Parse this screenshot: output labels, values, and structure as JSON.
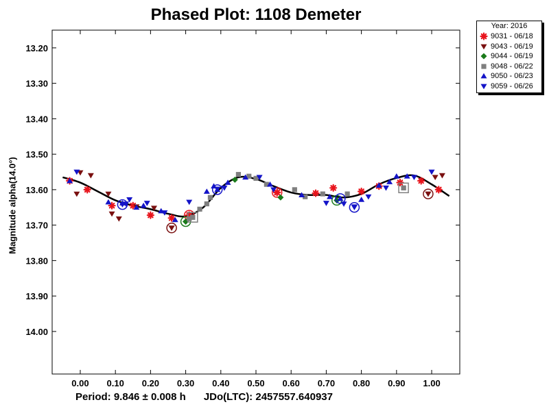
{
  "chart_data": {
    "type": "scatter",
    "title": "Phased Plot: 1108 Demeter",
    "ylabel": "Magnitude alpha(14.0°)",
    "xlim": [
      -0.08,
      1.08
    ],
    "ylim": [
      14.12,
      13.15
    ],
    "y_inverted": true,
    "x_ticks": [
      "0.00",
      "0.10",
      "0.20",
      "0.30",
      "0.40",
      "0.50",
      "0.60",
      "0.70",
      "0.80",
      "0.90",
      "1.00"
    ],
    "x_tick_values": [
      0,
      0.1,
      0.2,
      0.3,
      0.4,
      0.5,
      0.6,
      0.7,
      0.8,
      0.9,
      1.0
    ],
    "y_ticks": [
      "13.20",
      "13.30",
      "13.40",
      "13.50",
      "13.60",
      "13.70",
      "13.80",
      "13.90",
      "14.00"
    ],
    "y_tick_values": [
      13.2,
      13.3,
      13.4,
      13.5,
      13.6,
      13.7,
      13.8,
      13.9,
      14.0
    ],
    "legend_title": "Year: 2016",
    "legend_position": "outside-top-right",
    "series": [
      {
        "name": "9031 - 06/18",
        "marker": "star",
        "color": "#e8141c",
        "points": [
          [
            -0.03,
            13.575
          ],
          [
            0.02,
            13.6
          ],
          [
            0.09,
            13.645
          ],
          [
            0.15,
            13.645
          ],
          [
            0.2,
            13.672
          ],
          [
            0.26,
            13.68
          ],
          [
            0.31,
            13.672
          ],
          [
            0.56,
            13.608
          ],
          [
            0.67,
            13.61
          ],
          [
            0.72,
            13.595
          ],
          [
            0.8,
            13.605
          ],
          [
            0.85,
            13.59
          ],
          [
            0.91,
            13.58
          ],
          [
            0.97,
            13.575
          ],
          [
            1.02,
            13.6
          ]
        ],
        "circled": [
          [
            0.31,
            13.672
          ],
          [
            0.56,
            13.608
          ]
        ]
      },
      {
        "name": "9043 - 06/19",
        "marker": "triangle-down",
        "color": "#7a1010",
        "points": [
          [
            -0.01,
            13.612
          ],
          [
            0.0,
            13.552
          ],
          [
            0.03,
            13.56
          ],
          [
            0.08,
            13.612
          ],
          [
            0.09,
            13.668
          ],
          [
            0.11,
            13.682
          ],
          [
            0.16,
            13.648
          ],
          [
            0.21,
            13.652
          ],
          [
            0.26,
            13.708
          ],
          [
            0.99,
            13.612
          ],
          [
            1.01,
            13.565
          ],
          [
            1.03,
            13.56
          ]
        ],
        "circled": [
          [
            0.26,
            13.708
          ],
          [
            0.99,
            13.612
          ]
        ]
      },
      {
        "name": "9044 - 06/19",
        "marker": "diamond",
        "color": "#1a7a1a",
        "points": [
          [
            0.3,
            13.69
          ],
          [
            0.44,
            13.572
          ],
          [
            0.57,
            13.622
          ],
          [
            0.73,
            13.63
          ]
        ],
        "circled": [
          [
            0.3,
            13.69
          ],
          [
            0.73,
            13.63
          ]
        ]
      },
      {
        "name": "9048 - 06/22",
        "marker": "square",
        "color": "#7f7f7f",
        "points": [
          [
            0.31,
            13.682
          ],
          [
            0.32,
            13.678
          ],
          [
            0.34,
            13.655
          ],
          [
            0.36,
            13.64
          ],
          [
            0.37,
            13.622
          ],
          [
            0.45,
            13.557
          ],
          [
            0.48,
            13.562
          ],
          [
            0.5,
            13.568
          ],
          [
            0.53,
            13.585
          ],
          [
            0.61,
            13.6
          ],
          [
            0.64,
            13.62
          ],
          [
            0.69,
            13.612
          ],
          [
            0.76,
            13.612
          ],
          [
            0.92,
            13.595
          ]
        ],
        "circled": [
          [
            0.32,
            13.678
          ],
          [
            0.92,
            13.595
          ]
        ]
      },
      {
        "name": "9050 - 06/23",
        "marker": "triangle-up",
        "color": "#1414c8",
        "points": [
          [
            -0.03,
            13.575
          ],
          [
            0.08,
            13.635
          ],
          [
            0.12,
            13.638
          ],
          [
            0.16,
            13.65
          ],
          [
            0.18,
            13.645
          ],
          [
            0.23,
            13.66
          ],
          [
            0.27,
            13.685
          ],
          [
            0.36,
            13.605
          ],
          [
            0.38,
            13.59
          ],
          [
            0.42,
            13.58
          ],
          [
            0.47,
            13.565
          ],
          [
            0.54,
            13.585
          ],
          [
            0.63,
            13.615
          ],
          [
            0.71,
            13.62
          ],
          [
            0.74,
            13.625
          ],
          [
            0.8,
            13.628
          ],
          [
            0.85,
            13.588
          ],
          [
            0.88,
            13.578
          ],
          [
            0.9,
            13.562
          ],
          [
            0.93,
            13.562
          ]
        ],
        "circled": [
          [
            0.39,
            13.6
          ],
          [
            0.74,
            13.625
          ]
        ]
      },
      {
        "name": "9059 - 06/26",
        "marker": "triangle-down",
        "color": "#1414c8",
        "points": [
          [
            -0.01,
            13.55
          ],
          [
            0.13,
            13.64
          ],
          [
            0.14,
            13.628
          ],
          [
            0.19,
            13.638
          ],
          [
            0.24,
            13.665
          ],
          [
            0.31,
            13.635
          ],
          [
            0.39,
            13.598
          ],
          [
            0.41,
            13.595
          ],
          [
            0.51,
            13.565
          ],
          [
            0.55,
            13.6
          ],
          [
            0.7,
            13.638
          ],
          [
            0.75,
            13.64
          ],
          [
            0.78,
            13.648
          ],
          [
            0.82,
            13.62
          ],
          [
            0.87,
            13.595
          ],
          [
            0.95,
            13.565
          ],
          [
            1.0,
            13.55
          ]
        ],
        "circled": [
          [
            0.12,
            13.642
          ],
          [
            0.78,
            13.65
          ]
        ]
      }
    ],
    "fit_curve": {
      "x": [
        -0.05,
        0.0,
        0.05,
        0.1,
        0.15,
        0.2,
        0.25,
        0.3,
        0.35,
        0.4,
        0.45,
        0.5,
        0.55,
        0.6,
        0.65,
        0.7,
        0.75,
        0.8,
        0.85,
        0.9,
        0.95,
        1.0,
        1.05
      ],
      "y": [
        13.565,
        13.58,
        13.605,
        13.63,
        13.645,
        13.655,
        13.668,
        13.675,
        13.65,
        13.595,
        13.565,
        13.57,
        13.59,
        13.608,
        13.615,
        13.615,
        13.622,
        13.612,
        13.585,
        13.567,
        13.56,
        13.585,
        13.618
      ],
      "color": "#000000"
    },
    "footer": {
      "period": "Period: 9.846 ± 0.008 h",
      "jdo": "JDo(LTC): 2457557.640937"
    }
  }
}
